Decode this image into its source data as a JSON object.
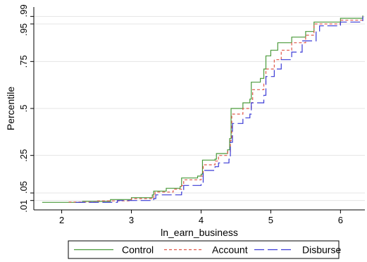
{
  "chart_data": {
    "type": "line",
    "xlabel": "ln_earn_business",
    "ylabel": "Percentile",
    "xlim": [
      1.6,
      6.35
    ],
    "ylim": [
      -0.04,
      1.04
    ],
    "x_ticks": [
      2,
      3,
      4,
      5,
      6
    ],
    "x_tick_labels": [
      "2",
      "3",
      "4",
      "5",
      "6"
    ],
    "y_ticks": [
      0.01,
      0.05,
      0.25,
      0.5,
      0.75,
      0.95,
      0.99
    ],
    "y_tick_labels": [
      ".01",
      ".05",
      ".25",
      ".5",
      ".75",
      ".95",
      ".99"
    ],
    "grid": true,
    "legend_position": "bottom",
    "series": [
      {
        "name": "Control",
        "color": "#4a9a3a",
        "dash": "solid",
        "points": [
          [
            1.72,
            0.0
          ],
          [
            2.3,
            0.005
          ],
          [
            2.7,
            0.015
          ],
          [
            3.0,
            0.025
          ],
          [
            3.3,
            0.04
          ],
          [
            3.32,
            0.06
          ],
          [
            3.5,
            0.075
          ],
          [
            3.7,
            0.085
          ],
          [
            3.72,
            0.13
          ],
          [
            3.95,
            0.14
          ],
          [
            4.0,
            0.15
          ],
          [
            4.02,
            0.225
          ],
          [
            4.2,
            0.23
          ],
          [
            4.22,
            0.26
          ],
          [
            4.38,
            0.28
          ],
          [
            4.41,
            0.34
          ],
          [
            4.43,
            0.5
          ],
          [
            4.6,
            0.53
          ],
          [
            4.7,
            0.55
          ],
          [
            4.72,
            0.64
          ],
          [
            4.85,
            0.66
          ],
          [
            4.9,
            0.71
          ],
          [
            4.93,
            0.78
          ],
          [
            5.0,
            0.81
          ],
          [
            5.1,
            0.85
          ],
          [
            5.3,
            0.88
          ],
          [
            5.5,
            0.91
          ],
          [
            5.62,
            0.96
          ],
          [
            6.0,
            0.98
          ],
          [
            6.32,
            0.995
          ]
        ]
      },
      {
        "name": "Account",
        "color": "#e0574a",
        "dash": "4,3",
        "points": [
          [
            2.1,
            0.002
          ],
          [
            2.5,
            0.008
          ],
          [
            3.0,
            0.02
          ],
          [
            3.32,
            0.035
          ],
          [
            3.34,
            0.055
          ],
          [
            3.6,
            0.07
          ],
          [
            3.72,
            0.09
          ],
          [
            3.75,
            0.12
          ],
          [
            4.0,
            0.14
          ],
          [
            4.03,
            0.2
          ],
          [
            4.2,
            0.22
          ],
          [
            4.25,
            0.25
          ],
          [
            4.38,
            0.27
          ],
          [
            4.42,
            0.33
          ],
          [
            4.44,
            0.47
          ],
          [
            4.6,
            0.5
          ],
          [
            4.72,
            0.53
          ],
          [
            4.74,
            0.6
          ],
          [
            4.9,
            0.63
          ],
          [
            4.93,
            0.71
          ],
          [
            5.05,
            0.76
          ],
          [
            5.15,
            0.81
          ],
          [
            5.3,
            0.85
          ],
          [
            5.5,
            0.89
          ],
          [
            5.62,
            0.95
          ],
          [
            6.0,
            0.97
          ],
          [
            6.32,
            0.99
          ]
        ]
      },
      {
        "name": "Disburse",
        "color": "#3a3ad6",
        "dash": "14,5",
        "points": [
          [
            2.2,
            0.0
          ],
          [
            2.8,
            0.01
          ],
          [
            3.32,
            0.02
          ],
          [
            3.35,
            0.04
          ],
          [
            3.72,
            0.055
          ],
          [
            3.75,
            0.09
          ],
          [
            4.0,
            0.1
          ],
          [
            4.03,
            0.17
          ],
          [
            4.2,
            0.19
          ],
          [
            4.25,
            0.21
          ],
          [
            4.4,
            0.23
          ],
          [
            4.42,
            0.32
          ],
          [
            4.45,
            0.42
          ],
          [
            4.6,
            0.45
          ],
          [
            4.7,
            0.47
          ],
          [
            4.72,
            0.53
          ],
          [
            4.9,
            0.57
          ],
          [
            4.93,
            0.67
          ],
          [
            5.05,
            0.71
          ],
          [
            5.15,
            0.76
          ],
          [
            5.3,
            0.8
          ],
          [
            5.45,
            0.86
          ],
          [
            5.65,
            0.91
          ],
          [
            5.7,
            0.94
          ],
          [
            6.0,
            0.96
          ],
          [
            6.32,
            0.99
          ]
        ]
      }
    ]
  }
}
